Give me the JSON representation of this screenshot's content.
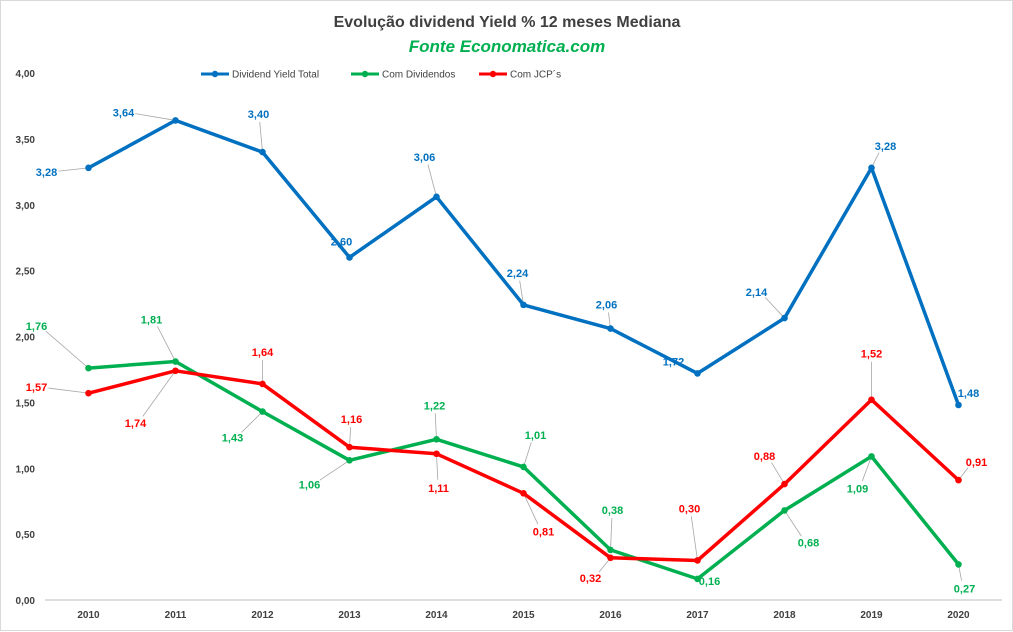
{
  "chart_data": {
    "type": "line",
    "title": "Evolução dividend Yield % 12 meses Mediana",
    "subtitle": "Fonte Economatica.com",
    "x": [
      "2010",
      "2011",
      "2012",
      "2013",
      "2014",
      "2015",
      "2016",
      "2017",
      "2018",
      "2019",
      "2020"
    ],
    "ylim": [
      0,
      4
    ],
    "yticks": [
      "0,00",
      "0,50",
      "1,00",
      "1,50",
      "2,00",
      "2,50",
      "3,00",
      "3,50",
      "4,00"
    ],
    "grid": false,
    "legend_position": "top",
    "series": [
      {
        "name": "Dividend Yield Total",
        "color": "#0070c0",
        "values": [
          3.28,
          3.64,
          3.4,
          2.6,
          3.06,
          2.24,
          2.06,
          1.72,
          2.14,
          3.28,
          1.48
        ],
        "labels": [
          "3,28",
          "3,64",
          "3,40",
          "2,60",
          "3,06",
          "2,24",
          "2,06",
          "1,72",
          "2,14",
          "3,28",
          "1,48"
        ]
      },
      {
        "name": "Com Dividendos",
        "color": "#00b050",
        "values": [
          1.76,
          1.81,
          1.43,
          1.06,
          1.22,
          1.01,
          0.38,
          0.16,
          0.68,
          1.09,
          0.27
        ],
        "labels": [
          "1,76",
          "1,81",
          "1,43",
          "1,06",
          "1,22",
          "1,01",
          "0,38",
          "0,16",
          "0,68",
          "1,09",
          "0,27"
        ]
      },
      {
        "name": "Com JCP´s",
        "color": "#ff0000",
        "values": [
          1.57,
          1.74,
          1.64,
          1.16,
          1.11,
          0.81,
          0.32,
          0.3,
          0.88,
          1.52,
          0.91
        ],
        "labels": [
          "1,57",
          "1,74",
          "1,64",
          "1,16",
          "1,11",
          "0,81",
          "0,32",
          "0,30",
          "0,88",
          "1,52",
          "0,91"
        ]
      }
    ]
  }
}
